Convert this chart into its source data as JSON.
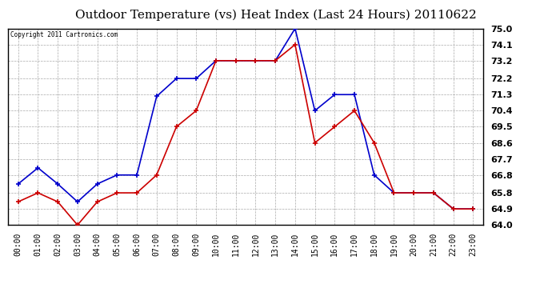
{
  "title": "Outdoor Temperature (vs) Heat Index (Last 24 Hours) 20110622",
  "copyright": "Copyright 2011 Cartronics.com",
  "x_labels": [
    "00:00",
    "01:00",
    "02:00",
    "03:00",
    "04:00",
    "05:00",
    "06:00",
    "07:00",
    "08:00",
    "09:00",
    "10:00",
    "11:00",
    "12:00",
    "13:00",
    "14:00",
    "15:00",
    "16:00",
    "17:00",
    "18:00",
    "19:00",
    "20:00",
    "21:00",
    "22:00",
    "23:00"
  ],
  "blue_data": [
    66.3,
    67.2,
    66.3,
    65.3,
    66.3,
    66.8,
    66.8,
    71.2,
    72.2,
    72.2,
    73.2,
    73.2,
    73.2,
    73.2,
    75.0,
    70.4,
    71.3,
    71.3,
    66.8,
    65.8,
    65.8,
    65.8,
    64.9,
    64.9
  ],
  "red_data": [
    65.3,
    65.8,
    65.3,
    64.0,
    65.3,
    65.8,
    65.8,
    66.8,
    69.5,
    70.4,
    73.2,
    73.2,
    73.2,
    73.2,
    74.1,
    68.6,
    69.5,
    70.4,
    68.6,
    65.8,
    65.8,
    65.8,
    64.9,
    64.9
  ],
  "blue_color": "#0000cc",
  "red_color": "#cc0000",
  "ylim": [
    64.0,
    75.0
  ],
  "yticks": [
    64.0,
    64.9,
    65.8,
    66.8,
    67.7,
    68.6,
    69.5,
    70.4,
    71.3,
    72.2,
    73.2,
    74.1,
    75.0
  ],
  "background_color": "#ffffff",
  "grid_color": "#aaaaaa",
  "title_fontsize": 11,
  "label_fontsize": 7,
  "copyright_fontsize": 5.5
}
